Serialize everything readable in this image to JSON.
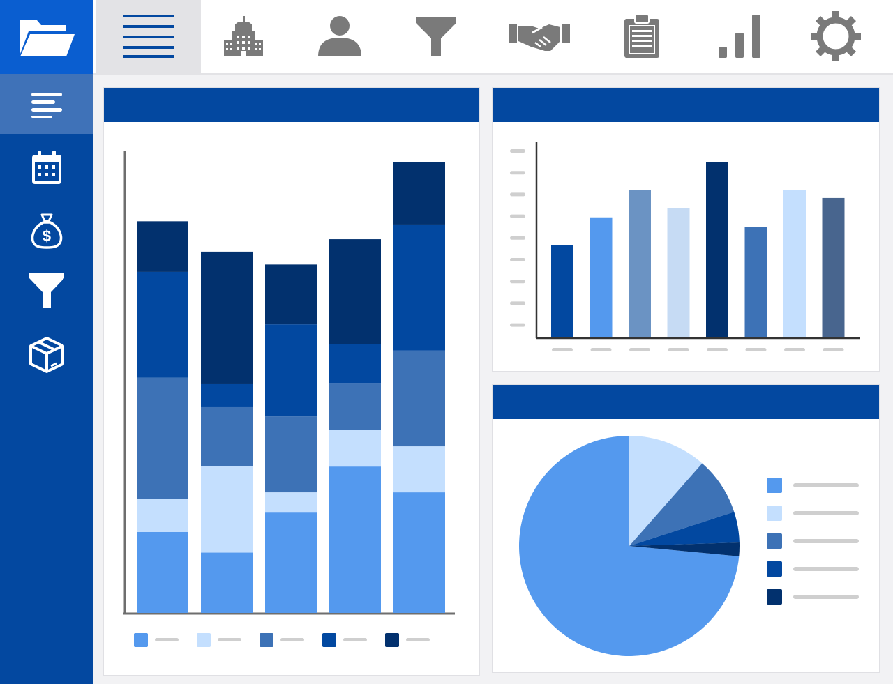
{
  "colors": {
    "brand_blue": "#0348a0",
    "brand_bright": "#0a5ed0",
    "icon_gray": "#7a7a7a",
    "palette": [
      "#5499ee",
      "#c4dffe",
      "#3d72b6",
      "#0248a0",
      "#02316e"
    ],
    "column_palette": [
      "#0248a0",
      "#5499ee",
      "#6b93c3",
      "#c6dbf4",
      "#02316e",
      "#3d72b6",
      "#c4dffe",
      "#48658e"
    ]
  },
  "sidebar": {
    "items": [
      {
        "icon": "text-lines-icon",
        "active": true
      },
      {
        "icon": "calendar-icon",
        "active": false
      },
      {
        "icon": "money-bag-icon",
        "active": false
      },
      {
        "icon": "filter-icon",
        "active": false
      },
      {
        "icon": "box-icon",
        "active": false
      }
    ]
  },
  "toolbar": {
    "items": [
      {
        "icon": "menu-icon",
        "active": true
      },
      {
        "icon": "building-icon",
        "active": false
      },
      {
        "icon": "user-icon",
        "active": false
      },
      {
        "icon": "funnel-icon",
        "active": false
      },
      {
        "icon": "handshake-icon",
        "active": false
      },
      {
        "icon": "clipboard-icon",
        "active": false
      },
      {
        "icon": "bar-chart-icon",
        "active": false
      },
      {
        "icon": "gear-icon",
        "active": false
      }
    ]
  },
  "chart_data": [
    {
      "type": "bar",
      "stacked": true,
      "categories": [
        "",
        "",
        "",
        "",
        ""
      ],
      "ylim": [
        0,
        100
      ],
      "series": [
        {
          "values": [
            17.6,
            13.1,
            21.8,
            31.8,
            26.2
          ]
        },
        {
          "values": [
            7.2,
            18.8,
            4.4,
            7.9,
            10.0
          ]
        },
        {
          "values": [
            26.3,
            12.8,
            16.5,
            10.1,
            20.8
          ]
        },
        {
          "values": [
            23.0,
            5.0,
            20.0,
            8.6,
            27.4
          ]
        },
        {
          "values": [
            11.0,
            28.8,
            13.0,
            22.8,
            13.6
          ]
        }
      ],
      "legend": "bottom",
      "grid": false
    },
    {
      "type": "bar",
      "categories": [
        "",
        "",
        "",
        "",
        "",
        "",
        "",
        ""
      ],
      "values": [
        50.0,
        65.0,
        80.0,
        70.0,
        95.0,
        60.0,
        80.0,
        75.5
      ],
      "ylim": [
        0,
        100
      ],
      "grid": false
    },
    {
      "type": "pie",
      "values": [
        73.5,
        11.5,
        8.5,
        4.5,
        2.0
      ],
      "legend": "right"
    }
  ]
}
